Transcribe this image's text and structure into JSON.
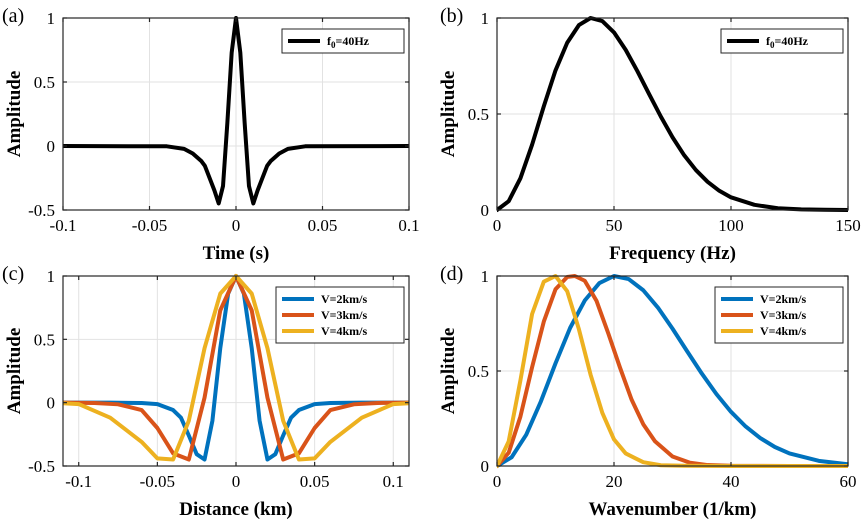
{
  "chart_data": [
    {
      "panel": "(a)",
      "type": "line",
      "title": "",
      "xlabel": "Time (s)",
      "ylabel": "Amplitude",
      "xlim": [
        -0.1,
        0.1
      ],
      "ylim": [
        -0.5,
        1
      ],
      "xticks": [
        -0.1,
        -0.05,
        0,
        0.05,
        0.1
      ],
      "xtick_labels": [
        "-0.1",
        "-0.05",
        "0",
        "0.05",
        "0.1"
      ],
      "yticks": [
        -0.5,
        0,
        0.5,
        1
      ],
      "ytick_labels": [
        "-0.5",
        "0",
        "0.5",
        "1"
      ],
      "grid": true,
      "legend_position": "top-right",
      "series": [
        {
          "name": "f0=40Hz",
          "legend_main": "f",
          "legend_sub": "0",
          "legend_rest": "=40Hz",
          "color": "#000000",
          "x": [
            -0.1,
            -0.04,
            -0.03,
            -0.025,
            -0.02,
            -0.018,
            -0.015,
            -0.0125,
            -0.01,
            -0.0075,
            -0.005,
            -0.0025,
            0,
            0.0025,
            0.005,
            0.0075,
            0.01,
            0.0125,
            0.015,
            0.018,
            0.02,
            0.025,
            0.03,
            0.04,
            0.1
          ],
          "y": [
            0,
            -0.0024,
            -0.0224,
            -0.0583,
            -0.1184,
            -0.1548,
            -0.2592,
            -0.3467,
            -0.4488,
            -0.3122,
            0.1806,
            0.7286,
            1,
            0.7286,
            0.1806,
            -0.3122,
            -0.4488,
            -0.3467,
            -0.2592,
            -0.1548,
            -0.1184,
            -0.0583,
            -0.0224,
            -0.0024,
            0
          ]
        }
      ]
    },
    {
      "panel": "(b)",
      "type": "line",
      "title": "",
      "xlabel": "Frequency (Hz)",
      "ylabel": "Amplitude",
      "xlim": [
        0,
        150
      ],
      "ylim": [
        0,
        1
      ],
      "xticks": [
        0,
        50,
        100,
        150
      ],
      "xtick_labels": [
        "0",
        "50",
        "100",
        "150"
      ],
      "yticks": [
        0,
        0.5,
        1
      ],
      "ytick_labels": [
        "0",
        "0.5",
        "1"
      ],
      "grid": true,
      "legend_position": "top-right",
      "series": [
        {
          "name": "f0=40Hz",
          "legend_main": "f",
          "legend_sub": "0",
          "legend_rest": "=40Hz",
          "color": "#000000",
          "x": [
            0,
            5,
            10,
            15,
            20,
            25,
            30,
            35,
            40,
            45,
            50,
            55,
            60,
            65,
            70,
            75,
            80,
            85,
            90,
            95,
            100,
            110,
            120,
            130,
            140,
            150
          ],
          "y": [
            0,
            0.046,
            0.165,
            0.34,
            0.54,
            0.727,
            0.871,
            0.963,
            1,
            0.984,
            0.925,
            0.834,
            0.723,
            0.604,
            0.487,
            0.379,
            0.285,
            0.208,
            0.147,
            0.1,
            0.066,
            0.027,
            0.009,
            0.003,
            0.001,
            0
          ]
        }
      ]
    },
    {
      "panel": "(c)",
      "type": "line",
      "title": "",
      "xlabel": "Distance (km)",
      "ylabel": "Amplitude",
      "xlim": [
        -0.11,
        0.11
      ],
      "ylim": [
        -0.5,
        1
      ],
      "xticks": [
        -0.1,
        -0.05,
        0,
        0.05,
        0.1
      ],
      "xtick_labels": [
        "-0.1",
        "-0.05",
        "0",
        "0.05",
        "0.1"
      ],
      "yticks": [
        -0.5,
        0,
        0.5,
        1
      ],
      "ytick_labels": [
        "-0.5",
        "0",
        "0.5",
        "1"
      ],
      "grid": true,
      "legend_position": "top-right",
      "series": [
        {
          "name": "V=2km/s",
          "color": "#0072BD",
          "x": [
            -0.11,
            -0.08,
            -0.06,
            -0.05,
            -0.04,
            -0.035,
            -0.03,
            -0.025,
            -0.02,
            -0.015,
            -0.01,
            -0.005,
            0,
            0.005,
            0.01,
            0.015,
            0.02,
            0.025,
            0.03,
            0.035,
            0.04,
            0.05,
            0.06,
            0.08,
            0.11
          ],
          "y": [
            0,
            0,
            -0.0024,
            -0.0111,
            -0.0583,
            -0.1184,
            -0.2592,
            -0.4067,
            -0.4488,
            -0.1426,
            0.4299,
            0.8608,
            1,
            0.8608,
            0.4299,
            -0.1426,
            -0.4488,
            -0.4067,
            -0.2592,
            -0.1184,
            -0.0583,
            -0.0111,
            -0.0024,
            0,
            0
          ]
        },
        {
          "name": "V=3km/s",
          "color": "#D95319",
          "x": [
            -0.11,
            -0.09,
            -0.075,
            -0.06,
            -0.05,
            -0.04,
            -0.03,
            -0.02,
            -0.01,
            0,
            0.01,
            0.02,
            0.03,
            0.04,
            0.05,
            0.06,
            0.075,
            0.09,
            0.11
          ],
          "y": [
            0,
            -0.0023,
            -0.013,
            -0.0583,
            -0.2,
            -0.4,
            -0.4488,
            0.04,
            0.7286,
            1,
            0.7286,
            0.04,
            -0.4488,
            -0.4,
            -0.2,
            -0.0583,
            -0.013,
            -0.0023,
            0
          ]
        },
        {
          "name": "V=4km/s",
          "color": "#EDB120",
          "x": [
            -0.11,
            -0.1,
            -0.08,
            -0.06,
            -0.05,
            -0.04,
            -0.03,
            -0.02,
            -0.01,
            0,
            0.01,
            0.02,
            0.03,
            0.04,
            0.05,
            0.06,
            0.08,
            0.1,
            0.11
          ],
          "y": [
            -0.005,
            -0.0111,
            -0.1184,
            -0.31,
            -0.44,
            -0.4488,
            -0.1426,
            0.4299,
            0.8608,
            1,
            0.8608,
            0.4299,
            -0.1426,
            -0.4488,
            -0.44,
            -0.31,
            -0.1184,
            -0.0111,
            -0.005
          ]
        }
      ]
    },
    {
      "panel": "(d)",
      "type": "line",
      "title": "",
      "xlabel": "Wavenumber (1/km)",
      "ylabel": "Amplitude",
      "xlim": [
        0,
        60
      ],
      "ylim": [
        0,
        1
      ],
      "xticks": [
        0,
        20,
        40,
        60
      ],
      "xtick_labels": [
        "0",
        "20",
        "40",
        "60"
      ],
      "yticks": [
        0,
        0.5,
        1
      ],
      "ytick_labels": [
        "0",
        "0.5",
        "1"
      ],
      "grid": true,
      "legend_position": "top-right",
      "series": [
        {
          "name": "V=2km/s",
          "color": "#0072BD",
          "x": [
            0,
            2.5,
            5,
            7.5,
            10,
            12.5,
            15,
            17.5,
            20,
            22.5,
            25,
            27.5,
            30,
            32.5,
            35,
            37.5,
            40,
            42.5,
            45,
            47.5,
            50,
            55,
            60
          ],
          "y": [
            0,
            0.046,
            0.165,
            0.34,
            0.54,
            0.727,
            0.871,
            0.963,
            1,
            0.984,
            0.925,
            0.834,
            0.723,
            0.604,
            0.487,
            0.379,
            0.285,
            0.208,
            0.147,
            0.1,
            0.066,
            0.027,
            0.009
          ]
        },
        {
          "name": "V=3km/s",
          "color": "#D95319",
          "x": [
            0,
            2,
            4,
            6,
            8,
            10,
            12,
            13.3,
            15,
            17,
            19,
            21,
            23,
            25,
            27,
            30,
            33,
            36,
            40,
            50,
            60
          ],
          "y": [
            0,
            0.07,
            0.26,
            0.52,
            0.76,
            0.93,
            0.995,
            1,
            0.975,
            0.87,
            0.7,
            0.52,
            0.35,
            0.22,
            0.13,
            0.05,
            0.017,
            0.005,
            0.001,
            0,
            0
          ]
        },
        {
          "name": "V=4km/s",
          "color": "#EDB120",
          "x": [
            0,
            2,
            4,
            6,
            8,
            10,
            12,
            14,
            16,
            18,
            20,
            22,
            25,
            28,
            32,
            40,
            60
          ],
          "y": [
            0,
            0.13,
            0.45,
            0.8,
            0.97,
            1,
            0.92,
            0.72,
            0.48,
            0.28,
            0.14,
            0.066,
            0.02,
            0.004,
            0.001,
            0,
            0
          ]
        }
      ]
    }
  ]
}
